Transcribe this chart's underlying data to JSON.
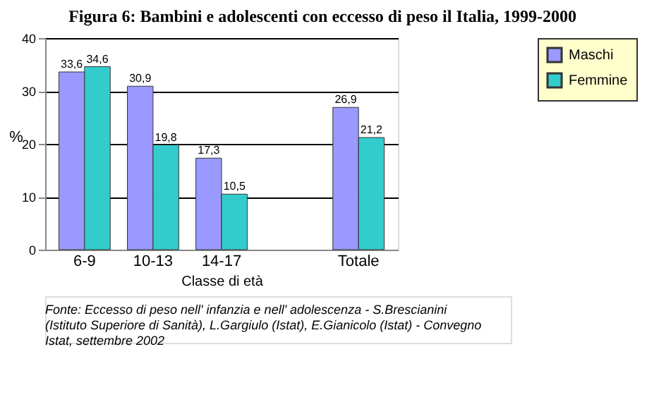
{
  "chart_data": {
    "type": "bar",
    "title": "Figura 6: Bambini e adolescenti con eccesso di peso il Italia, 1999-2000",
    "xlabel": "Classe di età",
    "ylabel": "%",
    "categories": [
      "6-9",
      "10-13",
      "14-17",
      null,
      "Totale"
    ],
    "series": [
      {
        "name": "Maschi",
        "color": "#9999ff",
        "values": [
          33.6,
          30.9,
          17.3,
          null,
          26.9
        ],
        "value_labels": [
          "33,6",
          "30,9",
          "17,3",
          null,
          "26,9"
        ]
      },
      {
        "name": "Femmine",
        "color": "#33cccc",
        "values": [
          34.6,
          19.8,
          10.5,
          null,
          21.2
        ],
        "value_labels": [
          "34,6",
          "19,8",
          "10,5",
          null,
          "21,2"
        ]
      }
    ],
    "ylim": [
      0,
      40
    ],
    "yticks": [
      0,
      10,
      20,
      30,
      40
    ],
    "grid": "y",
    "legend": "right",
    "annotations": [
      "Fonte: Eccesso di peso nell' infanzia e nell' adolescenza - S.Brescianini (Istituto Superiore di Sanità), L.Gargiulo (Istat), E.Gianicolo (Istat) - Convegno Istat, settembre 2002"
    ]
  }
}
